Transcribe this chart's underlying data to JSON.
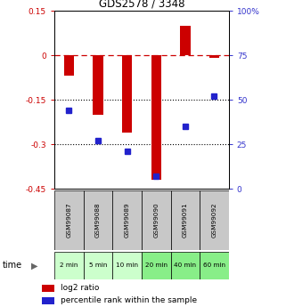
{
  "title": "GDS2578 / 3348",
  "samples": [
    "GSM99087",
    "GSM99088",
    "GSM99089",
    "GSM99090",
    "GSM99091",
    "GSM99092"
  ],
  "time_labels": [
    "2 min",
    "5 min",
    "10 min",
    "20 min",
    "40 min",
    "60 min"
  ],
  "log2_ratio": [
    -0.07,
    -0.2,
    -0.26,
    -0.42,
    0.1,
    -0.01
  ],
  "percentile_rank": [
    44,
    27,
    21,
    7,
    35,
    52
  ],
  "ylim_left": [
    -0.45,
    0.15
  ],
  "ylim_right": [
    0,
    100
  ],
  "yticks_left": [
    0.15,
    0,
    -0.15,
    -0.3,
    -0.45
  ],
  "yticks_right": [
    100,
    75,
    50,
    25,
    0
  ],
  "hline_dashed": 0,
  "hline_dotted": [
    -0.15,
    -0.3
  ],
  "bar_color": "#cc0000",
  "dot_color": "#2222cc",
  "left_tick_color": "#cc0000",
  "right_tick_color": "#3333cc",
  "bg_plot": "#ffffff",
  "bg_gsm": "#c8c8c8",
  "bg_time_light": "#ccffcc",
  "bg_time_dark": "#88ee88",
  "legend_text1": "log2 ratio",
  "legend_text2": "percentile rank within the sample",
  "time_label": "time",
  "figsize": [
    3.21,
    3.45
  ],
  "dpi": 100
}
